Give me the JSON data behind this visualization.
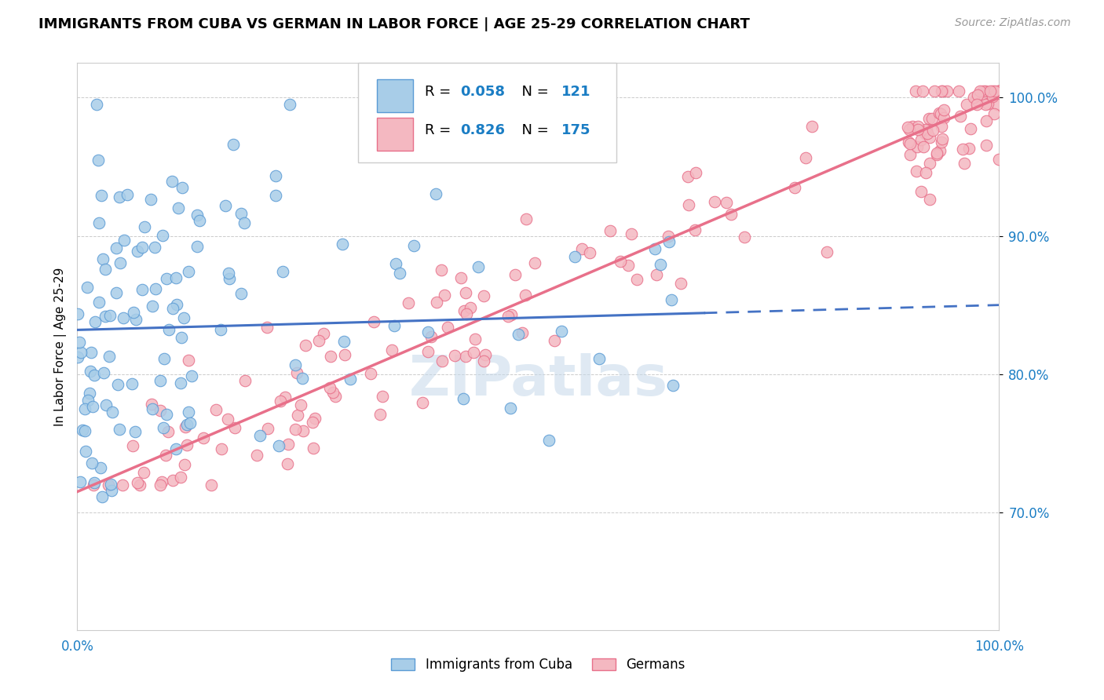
{
  "title": "IMMIGRANTS FROM CUBA VS GERMAN IN LABOR FORCE | AGE 25-29 CORRELATION CHART",
  "source": "Source: ZipAtlas.com",
  "ylabel": "In Labor Force | Age 25-29",
  "xlim": [
    0.0,
    1.0
  ],
  "ylim": [
    0.615,
    1.025
  ],
  "yticks": [
    0.7,
    0.8,
    0.9,
    1.0
  ],
  "ytick_labels": [
    "70.0%",
    "80.0%",
    "90.0%",
    "100.0%"
  ],
  "xticks": [
    0.0,
    0.1,
    0.2,
    0.3,
    0.4,
    0.5,
    0.6,
    0.7,
    0.8,
    0.9,
    1.0
  ],
  "xtick_labels": [
    "0.0%",
    "",
    "",
    "",
    "",
    "",
    "",
    "",
    "",
    "",
    "100.0%"
  ],
  "cuba_color": "#a8cde8",
  "cuba_edge_color": "#5b9bd5",
  "german_color": "#f4b8c1",
  "german_edge_color": "#e8708a",
  "cuba_line_color": "#4472c4",
  "german_line_color": "#e8708a",
  "cuba_R": 0.058,
  "cuba_N": 121,
  "german_R": 0.826,
  "german_N": 175,
  "watermark": "ZIPatlas",
  "legend_label_cuba": "Immigrants from Cuba",
  "legend_label_german": "Germans",
  "background_color": "#ffffff",
  "grid_color": "#cccccc",
  "axis_color": "#1a7dc4",
  "tick_color": "#1a7dc4",
  "title_fontsize": 13,
  "source_fontsize": 10,
  "label_fontsize": 11,
  "legend_fontsize": 13,
  "cuba_line_intercept": 0.832,
  "cuba_line_slope": 0.018,
  "german_line_intercept": 0.715,
  "german_line_slope": 0.285
}
